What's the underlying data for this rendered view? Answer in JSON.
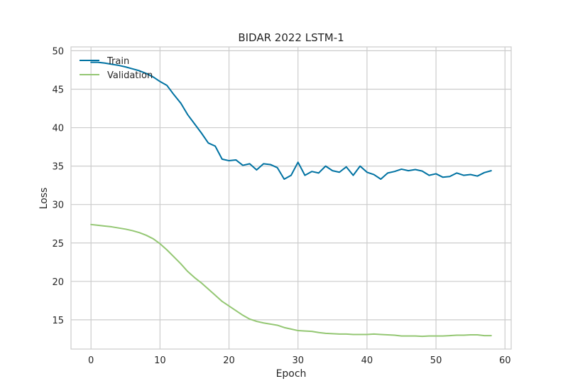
{
  "chart_data": {
    "type": "line",
    "title": "BIDAR 2022 LSTM-1",
    "xlabel": "Epoch",
    "ylabel": "Loss",
    "xlim": [
      -2.9,
      60.9
    ],
    "ylim": [
      11.2,
      50.5
    ],
    "xticks": [
      0,
      10,
      20,
      30,
      40,
      50,
      60
    ],
    "yticks": [
      15,
      20,
      25,
      30,
      35,
      40,
      45,
      50
    ],
    "grid": true,
    "legend_position": "top-left",
    "x": [
      0,
      1,
      2,
      3,
      4,
      5,
      6,
      7,
      8,
      9,
      10,
      11,
      12,
      13,
      14,
      15,
      16,
      17,
      18,
      19,
      20,
      21,
      22,
      23,
      24,
      25,
      26,
      27,
      28,
      29,
      30,
      31,
      32,
      33,
      34,
      35,
      36,
      37,
      38,
      39,
      40,
      41,
      42,
      43,
      44,
      45,
      46,
      47,
      48,
      49,
      50,
      51,
      52,
      53,
      54,
      55,
      56,
      57,
      58
    ],
    "series": [
      {
        "name": "Train",
        "color": "#0072a2",
        "values": [
          48.5,
          48.5,
          48.4,
          48.25,
          48.1,
          47.9,
          47.65,
          47.4,
          47.05,
          46.6,
          46.0,
          45.5,
          44.3,
          43.2,
          41.7,
          40.5,
          39.3,
          38.0,
          37.6,
          35.9,
          35.7,
          35.8,
          35.1,
          35.3,
          34.5,
          35.3,
          35.2,
          34.8,
          33.3,
          33.8,
          35.5,
          33.8,
          34.3,
          34.1,
          35.0,
          34.4,
          34.2,
          34.9,
          33.8,
          35.0,
          34.2,
          33.9,
          33.3,
          34.1,
          34.3,
          34.6,
          34.4,
          34.55,
          34.35,
          33.8,
          34.0,
          33.55,
          33.65,
          34.1,
          33.8,
          33.9,
          33.7,
          34.15,
          34.4
        ]
      },
      {
        "name": "Validation",
        "color": "#94c773",
        "values": [
          27.4,
          27.3,
          27.2,
          27.1,
          26.95,
          26.8,
          26.6,
          26.35,
          26.0,
          25.55,
          24.9,
          24.1,
          23.2,
          22.3,
          21.3,
          20.5,
          19.8,
          19.0,
          18.2,
          17.4,
          16.8,
          16.2,
          15.6,
          15.1,
          14.8,
          14.6,
          14.45,
          14.3,
          14.0,
          13.8,
          13.6,
          13.55,
          13.5,
          13.35,
          13.25,
          13.2,
          13.15,
          13.15,
          13.1,
          13.1,
          13.1,
          13.15,
          13.1,
          13.05,
          13.0,
          12.9,
          12.9,
          12.9,
          12.85,
          12.9,
          12.9,
          12.9,
          12.95,
          13.0,
          13.0,
          13.05,
          13.05,
          12.95,
          12.95
        ]
      }
    ]
  }
}
